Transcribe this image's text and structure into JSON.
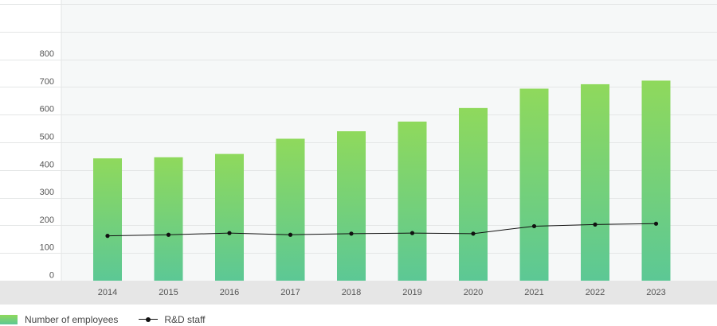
{
  "chart_data": {
    "type": "bar",
    "categories": [
      "2014",
      "2015",
      "2016",
      "2017",
      "2018",
      "2019",
      "2020",
      "2021",
      "2022",
      "2023"
    ],
    "series": [
      {
        "name": "Number of employees",
        "type": "bar",
        "values": [
          442,
          446,
          458,
          513,
          540,
          575,
          624,
          694,
          710,
          723
        ]
      },
      {
        "name": "R&D staff",
        "type": "line",
        "values": [
          162,
          166,
          172,
          166,
          170,
          172,
          170,
          197,
          203,
          206
        ]
      }
    ],
    "yticks": [
      "0",
      "100",
      "200",
      "300",
      "400",
      "500",
      "600",
      "700",
      "800"
    ],
    "ylim": [
      0,
      1000
    ],
    "grid": true,
    "legend": "bottom-left",
    "colors": {
      "bar_top": "#8fd95c",
      "bar_bottom": "#5cc895",
      "line": "#111111",
      "axis_band": "#e6e6e6",
      "plot_bg": "#f6f8f8"
    }
  }
}
